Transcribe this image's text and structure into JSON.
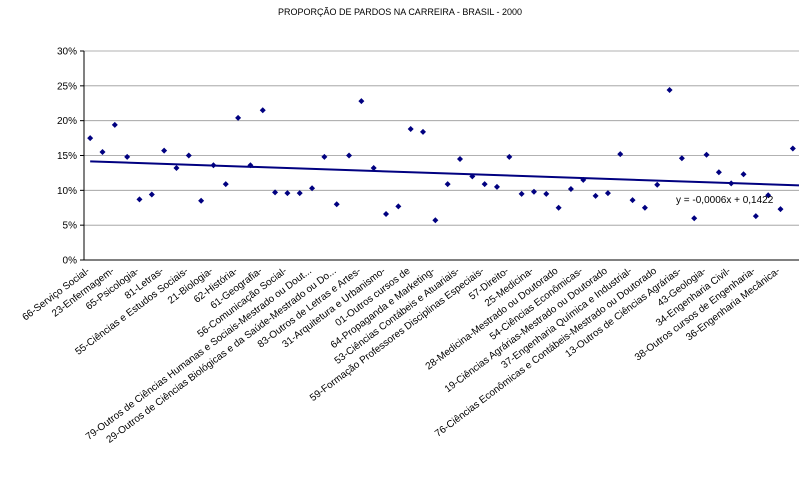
{
  "chart_data": {
    "type": "scatter",
    "title": "PROPORÇÃO DE PARDOS NA CARREIRA - BRASIL - 2000",
    "categories": [
      "66-Serviço Social-",
      null,
      "23-Enfermagem-",
      null,
      "65-Psicologia-",
      null,
      "81-Letras-",
      null,
      "55-Ciências e Estudos Sociais-",
      null,
      "21-Biologia-",
      null,
      "62-História-",
      null,
      "61-Geografia-",
      null,
      "56-Comunicação Social-",
      null,
      "79-Outros de Ciências Humanas e Sociais-Mestrado ou Dout...",
      null,
      "29-Outros de Ciências Biológicas e da Saúde-Mestrado ou Do...",
      null,
      "83-Outros de Letras e Artes-",
      null,
      "31-Arquitetura e Urbanismo-",
      null,
      "01-Outros cursos de",
      null,
      "64-Propaganda e Marketing-",
      null,
      "53-Ciências Contábeis e Atuariais-",
      null,
      "59-Formação Professores Disciplinas Especiais-",
      null,
      "57-Direito-",
      null,
      "25-Medicina-",
      null,
      "28-Medicina-Mestrado ou Doutorado",
      null,
      "54-Ciências Econômicas-",
      null,
      "19-Ciências Agrárias-Mestrado ou Doutorado",
      null,
      "37-Engenharia Química e Industrial-",
      null,
      "76-Ciências Econômicas e Contábeis-Mestrado ou Doutorado",
      null,
      "13-Outros de Ciências Agrárias-",
      null,
      "43-Geologia-",
      null,
      "34-Engenharia Civil-",
      null,
      "38-Outros cursos de Engenharia-",
      null,
      "36-Engenharia Mecânica-",
      null
    ],
    "values": [
      17.5,
      15.5,
      19.4,
      14.8,
      8.7,
      9.4,
      15.7,
      13.2,
      15.0,
      8.5,
      13.6,
      10.9,
      20.4,
      13.6,
      21.5,
      9.7,
      9.6,
      9.6,
      10.3,
      14.8,
      8.0,
      15.0,
      22.8,
      13.2,
      6.6,
      7.7,
      18.8,
      18.4,
      5.7,
      10.9,
      14.5,
      12.0,
      10.9,
      10.5,
      14.8,
      9.5,
      9.8,
      9.5,
      7.5,
      10.2,
      11.5,
      9.2,
      9.6,
      15.2,
      8.6,
      7.5,
      10.8,
      24.4,
      14.6,
      6.0,
      15.1,
      12.6,
      11.0,
      12.3,
      6.3,
      9.3,
      7.3,
      16.0
    ],
    "color": "#000080",
    "ylim": [
      0,
      30
    ],
    "yticks": [
      {
        "value": 0,
        "label": "0%"
      },
      {
        "value": 5,
        "label": "5%"
      },
      {
        "value": 10,
        "label": "10%"
      },
      {
        "value": 15,
        "label": "15%"
      },
      {
        "value": 20,
        "label": "20%"
      },
      {
        "value": 25,
        "label": "25%"
      },
      {
        "value": 30,
        "label": "30%"
      }
    ],
    "grid": true,
    "trendline": {
      "label": "y = -0,0006x + 0,1422",
      "slope": -0.06,
      "intercept": 14.22
    }
  }
}
